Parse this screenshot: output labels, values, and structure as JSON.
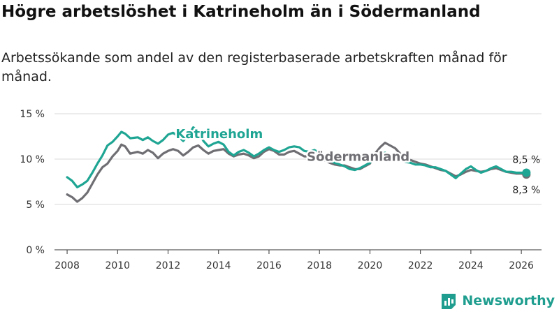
{
  "title": "Högre arbetslöshet i Katrineholm än i Södermanland",
  "subtitle": "Arbetssökande som andel av den registerbaserade arbetskraften månad för månad.",
  "brand": "Newsworthy",
  "colors": {
    "katrineholm": "#1fa593",
    "sodermanland": "#6e6e73",
    "grid": "#d9d9d9",
    "brand": "#1f9e8f"
  },
  "chart_data": {
    "type": "line",
    "title": "Högre arbetslöshet i Katrineholm än i Södermanland",
    "xlabel": "",
    "ylabel": "",
    "xlim": [
      2007.5,
      2026.8
    ],
    "ylim": [
      0,
      15
    ],
    "x_ticks": [
      2008,
      2010,
      2012,
      2014,
      2016,
      2018,
      2020,
      2022,
      2024,
      2026
    ],
    "y_ticks": [
      {
        "value": 0,
        "label": "0 %"
      },
      {
        "value": 5,
        "label": "5 %"
      },
      {
        "value": 10,
        "label": "10 %"
      },
      {
        "value": 15,
        "label": "15 %"
      }
    ],
    "series": [
      {
        "name": "Södermanland",
        "label": "Södermanland",
        "end_label": "8,3 %",
        "points": [
          [
            2008.0,
            6.1
          ],
          [
            2008.2,
            5.8
          ],
          [
            2008.4,
            5.3
          ],
          [
            2008.6,
            5.7
          ],
          [
            2008.8,
            6.3
          ],
          [
            2009.0,
            7.3
          ],
          [
            2009.2,
            8.3
          ],
          [
            2009.4,
            9.1
          ],
          [
            2009.6,
            9.5
          ],
          [
            2009.8,
            10.3
          ],
          [
            2010.0,
            10.9
          ],
          [
            2010.15,
            11.6
          ],
          [
            2010.3,
            11.4
          ],
          [
            2010.5,
            10.6
          ],
          [
            2010.8,
            10.8
          ],
          [
            2011.0,
            10.6
          ],
          [
            2011.2,
            11.0
          ],
          [
            2011.4,
            10.7
          ],
          [
            2011.6,
            10.1
          ],
          [
            2011.8,
            10.6
          ],
          [
            2012.0,
            10.9
          ],
          [
            2012.2,
            11.1
          ],
          [
            2012.4,
            10.9
          ],
          [
            2012.6,
            10.4
          ],
          [
            2012.8,
            10.8
          ],
          [
            2013.0,
            11.3
          ],
          [
            2013.2,
            11.5
          ],
          [
            2013.4,
            11.0
          ],
          [
            2013.6,
            10.6
          ],
          [
            2013.8,
            10.9
          ],
          [
            2014.0,
            11.0
          ],
          [
            2014.2,
            11.1
          ],
          [
            2014.4,
            10.6
          ],
          [
            2014.6,
            10.3
          ],
          [
            2014.8,
            10.5
          ],
          [
            2015.0,
            10.6
          ],
          [
            2015.2,
            10.4
          ],
          [
            2015.4,
            10.1
          ],
          [
            2015.6,
            10.3
          ],
          [
            2015.8,
            10.8
          ],
          [
            2016.0,
            11.1
          ],
          [
            2016.2,
            10.9
          ],
          [
            2016.4,
            10.5
          ],
          [
            2016.6,
            10.5
          ],
          [
            2016.8,
            10.8
          ],
          [
            2017.0,
            10.9
          ],
          [
            2017.2,
            10.6
          ],
          [
            2017.4,
            10.3
          ],
          [
            2017.6,
            10.3
          ],
          [
            2017.8,
            10.4
          ],
          [
            2018.0,
            10.2
          ],
          [
            2018.2,
            9.9
          ],
          [
            2018.4,
            9.6
          ],
          [
            2018.6,
            9.4
          ],
          [
            2018.8,
            9.3
          ],
          [
            2019.0,
            9.3
          ],
          [
            2019.2,
            9.1
          ],
          [
            2019.4,
            8.9
          ],
          [
            2019.6,
            8.9
          ],
          [
            2019.8,
            9.2
          ],
          [
            2020.0,
            9.5
          ],
          [
            2020.2,
            10.6
          ],
          [
            2020.4,
            11.3
          ],
          [
            2020.6,
            11.8
          ],
          [
            2020.8,
            11.5
          ],
          [
            2021.0,
            11.2
          ],
          [
            2021.2,
            10.6
          ],
          [
            2021.4,
            10.1
          ],
          [
            2021.6,
            9.9
          ],
          [
            2021.8,
            9.7
          ],
          [
            2022.0,
            9.5
          ],
          [
            2022.2,
            9.4
          ],
          [
            2022.4,
            9.2
          ],
          [
            2022.6,
            9.0
          ],
          [
            2022.8,
            8.8
          ],
          [
            2023.0,
            8.7
          ],
          [
            2023.2,
            8.4
          ],
          [
            2023.4,
            8.1
          ],
          [
            2023.6,
            8.3
          ],
          [
            2023.8,
            8.6
          ],
          [
            2024.0,
            8.8
          ],
          [
            2024.2,
            8.7
          ],
          [
            2024.4,
            8.6
          ],
          [
            2024.6,
            8.7
          ],
          [
            2024.8,
            8.9
          ],
          [
            2025.0,
            9.0
          ],
          [
            2025.2,
            8.8
          ],
          [
            2025.4,
            8.6
          ],
          [
            2025.6,
            8.5
          ],
          [
            2025.8,
            8.4
          ],
          [
            2026.0,
            8.4
          ],
          [
            2026.2,
            8.3
          ]
        ]
      },
      {
        "name": "Katrineholm",
        "label": "Katrineholm",
        "end_label": "8,5 %",
        "points": [
          [
            2008.0,
            8.0
          ],
          [
            2008.2,
            7.6
          ],
          [
            2008.4,
            6.9
          ],
          [
            2008.6,
            7.2
          ],
          [
            2008.8,
            7.6
          ],
          [
            2009.0,
            8.5
          ],
          [
            2009.2,
            9.5
          ],
          [
            2009.4,
            10.4
          ],
          [
            2009.6,
            11.5
          ],
          [
            2009.8,
            11.9
          ],
          [
            2010.0,
            12.5
          ],
          [
            2010.15,
            13.0
          ],
          [
            2010.3,
            12.8
          ],
          [
            2010.5,
            12.3
          ],
          [
            2010.8,
            12.4
          ],
          [
            2011.0,
            12.1
          ],
          [
            2011.2,
            12.4
          ],
          [
            2011.4,
            12.0
          ],
          [
            2011.6,
            11.7
          ],
          [
            2011.8,
            12.1
          ],
          [
            2012.0,
            12.7
          ],
          [
            2012.2,
            12.9
          ],
          [
            2012.4,
            12.5
          ],
          [
            2012.6,
            12.0
          ],
          [
            2012.8,
            12.6
          ],
          [
            2013.0,
            13.5
          ],
          [
            2013.2,
            13.0
          ],
          [
            2013.4,
            12.0
          ],
          [
            2013.6,
            11.4
          ],
          [
            2013.8,
            11.7
          ],
          [
            2014.0,
            11.9
          ],
          [
            2014.2,
            11.6
          ],
          [
            2014.4,
            10.8
          ],
          [
            2014.6,
            10.4
          ],
          [
            2014.8,
            10.8
          ],
          [
            2015.0,
            11.0
          ],
          [
            2015.2,
            10.7
          ],
          [
            2015.4,
            10.3
          ],
          [
            2015.6,
            10.6
          ],
          [
            2015.8,
            11.0
          ],
          [
            2016.0,
            11.3
          ],
          [
            2016.2,
            11.0
          ],
          [
            2016.4,
            10.8
          ],
          [
            2016.6,
            11.0
          ],
          [
            2016.8,
            11.3
          ],
          [
            2017.0,
            11.4
          ],
          [
            2017.2,
            11.3
          ],
          [
            2017.4,
            10.9
          ],
          [
            2017.6,
            10.8
          ],
          [
            2017.8,
            11.0
          ],
          [
            2018.0,
            10.7
          ],
          [
            2018.2,
            10.1
          ],
          [
            2018.4,
            9.8
          ],
          [
            2018.6,
            9.6
          ],
          [
            2018.8,
            9.4
          ],
          [
            2019.0,
            9.2
          ],
          [
            2019.2,
            8.9
          ],
          [
            2019.4,
            8.8
          ],
          [
            2019.6,
            9.0
          ],
          [
            2019.8,
            9.3
          ],
          [
            2020.0,
            9.6
          ],
          [
            2020.2,
            10.2
          ],
          [
            2020.4,
            10.6
          ],
          [
            2020.6,
            10.7
          ],
          [
            2020.8,
            10.4
          ],
          [
            2021.0,
            10.1
          ],
          [
            2021.2,
            9.9
          ],
          [
            2021.4,
            9.7
          ],
          [
            2021.6,
            9.6
          ],
          [
            2021.8,
            9.4
          ],
          [
            2022.0,
            9.4
          ],
          [
            2022.2,
            9.3
          ],
          [
            2022.4,
            9.1
          ],
          [
            2022.6,
            9.1
          ],
          [
            2022.8,
            8.9
          ],
          [
            2023.0,
            8.7
          ],
          [
            2023.2,
            8.3
          ],
          [
            2023.4,
            7.9
          ],
          [
            2023.6,
            8.4
          ],
          [
            2023.8,
            8.9
          ],
          [
            2024.0,
            9.2
          ],
          [
            2024.2,
            8.8
          ],
          [
            2024.4,
            8.5
          ],
          [
            2024.6,
            8.7
          ],
          [
            2024.8,
            9.0
          ],
          [
            2025.0,
            9.2
          ],
          [
            2025.2,
            8.9
          ],
          [
            2025.4,
            8.6
          ],
          [
            2025.6,
            8.6
          ],
          [
            2025.8,
            8.5
          ],
          [
            2026.0,
            8.5
          ],
          [
            2026.2,
            8.5
          ]
        ]
      }
    ]
  }
}
